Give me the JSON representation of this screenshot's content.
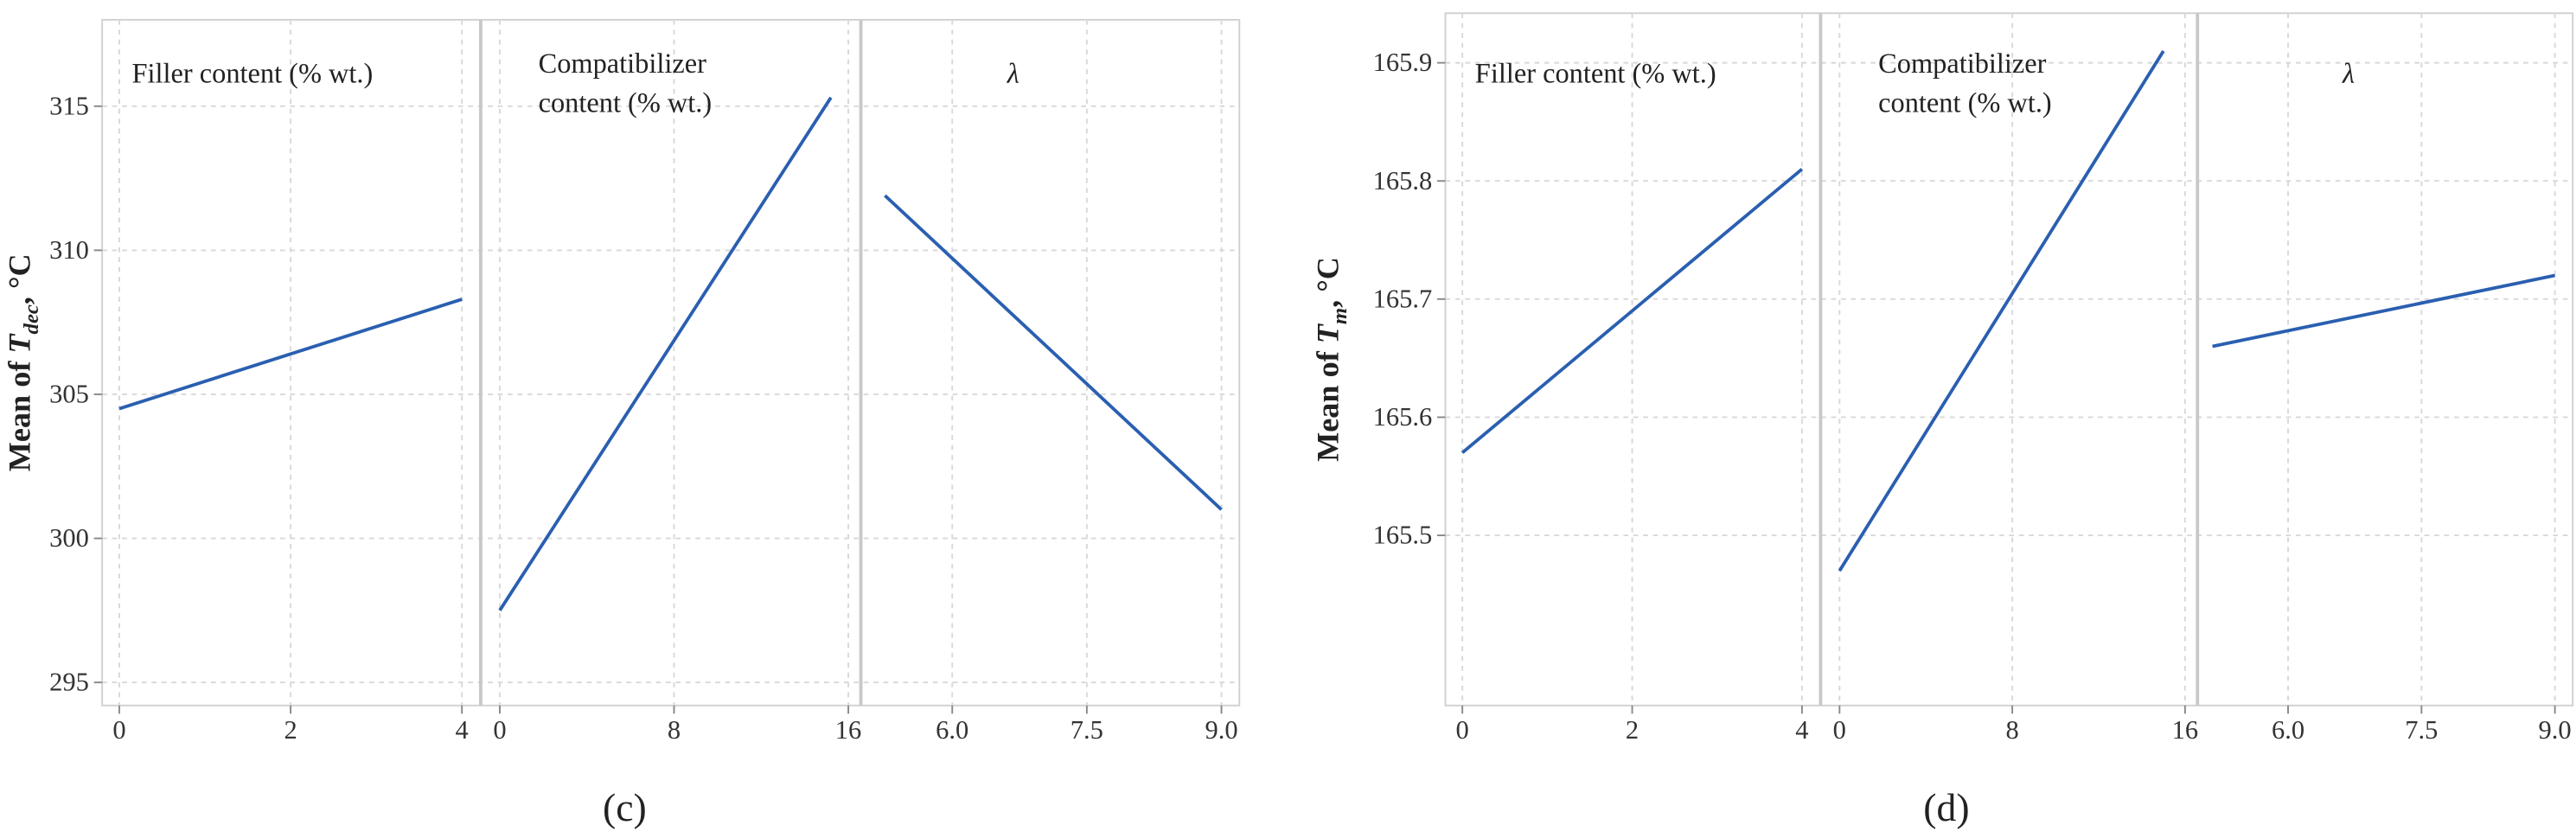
{
  "chart_data": [
    {
      "type": "line",
      "color": "#2a5fb0",
      "grid": true,
      "ylabel": {
        "prefix": "Mean of ",
        "var": "T",
        "sub": "dec",
        "unit": ", °C"
      },
      "caption": "(c)",
      "ylim": [
        294.2,
        318
      ],
      "yticks": [
        295,
        300,
        305,
        310,
        315
      ],
      "panels": [
        {
          "title": [
            "Filler content (% wt.)"
          ],
          "x": [
            0,
            4
          ],
          "values": [
            304.5,
            308.3
          ],
          "xlim": [
            -0.2,
            4.2
          ],
          "xticks": [
            0,
            2,
            4
          ]
        },
        {
          "title": [
            "Compatibilizer",
            "content (% wt.)"
          ],
          "x": [
            0,
            15.2
          ],
          "values": [
            297.5,
            315.3
          ],
          "xlim": [
            -0.8,
            16.5
          ],
          "xticks": [
            0,
            8,
            16
          ]
        },
        {
          "title": [
            "λ"
          ],
          "x": [
            5.25,
            9
          ],
          "values": [
            311.9,
            301.0
          ],
          "xlim": [
            5.0,
            9.2
          ],
          "xticks": [
            {
              "value": 6,
              "label": "6.0"
            },
            7.5,
            {
              "value": 9,
              "label": "9.0"
            }
          ]
        }
      ]
    },
    {
      "type": "line",
      "color": "#2a5fb0",
      "grid": true,
      "ylabel": {
        "prefix": "Mean of ",
        "var": "T",
        "sub": "m",
        "unit": ", °C"
      },
      "caption": "(d)",
      "ylim": [
        165.356,
        165.942
      ],
      "yticks": [
        165.5,
        165.6,
        165.7,
        165.8,
        165.9
      ],
      "panels": [
        {
          "title": [
            "Filler content (% wt.)"
          ],
          "x": [
            0,
            4
          ],
          "values": [
            165.57,
            165.81
          ],
          "xlim": [
            -0.2,
            4.2
          ],
          "xticks": [
            0,
            2,
            4
          ]
        },
        {
          "title": [
            "Compatibilizer",
            "content (% wt.)"
          ],
          "x": [
            0,
            15
          ],
          "values": [
            165.47,
            165.91
          ],
          "xlim": [
            -0.8,
            16.5
          ],
          "xticks": [
            0,
            8,
            16
          ]
        },
        {
          "title": [
            "λ"
          ],
          "x": [
            5.15,
            9
          ],
          "values": [
            165.66,
            165.72
          ],
          "xlim": [
            5.0,
            9.2
          ],
          "xticks": [
            {
              "value": 6,
              "label": "6.0"
            },
            7.5,
            {
              "value": 9,
              "label": "9.0"
            }
          ]
        }
      ]
    }
  ]
}
